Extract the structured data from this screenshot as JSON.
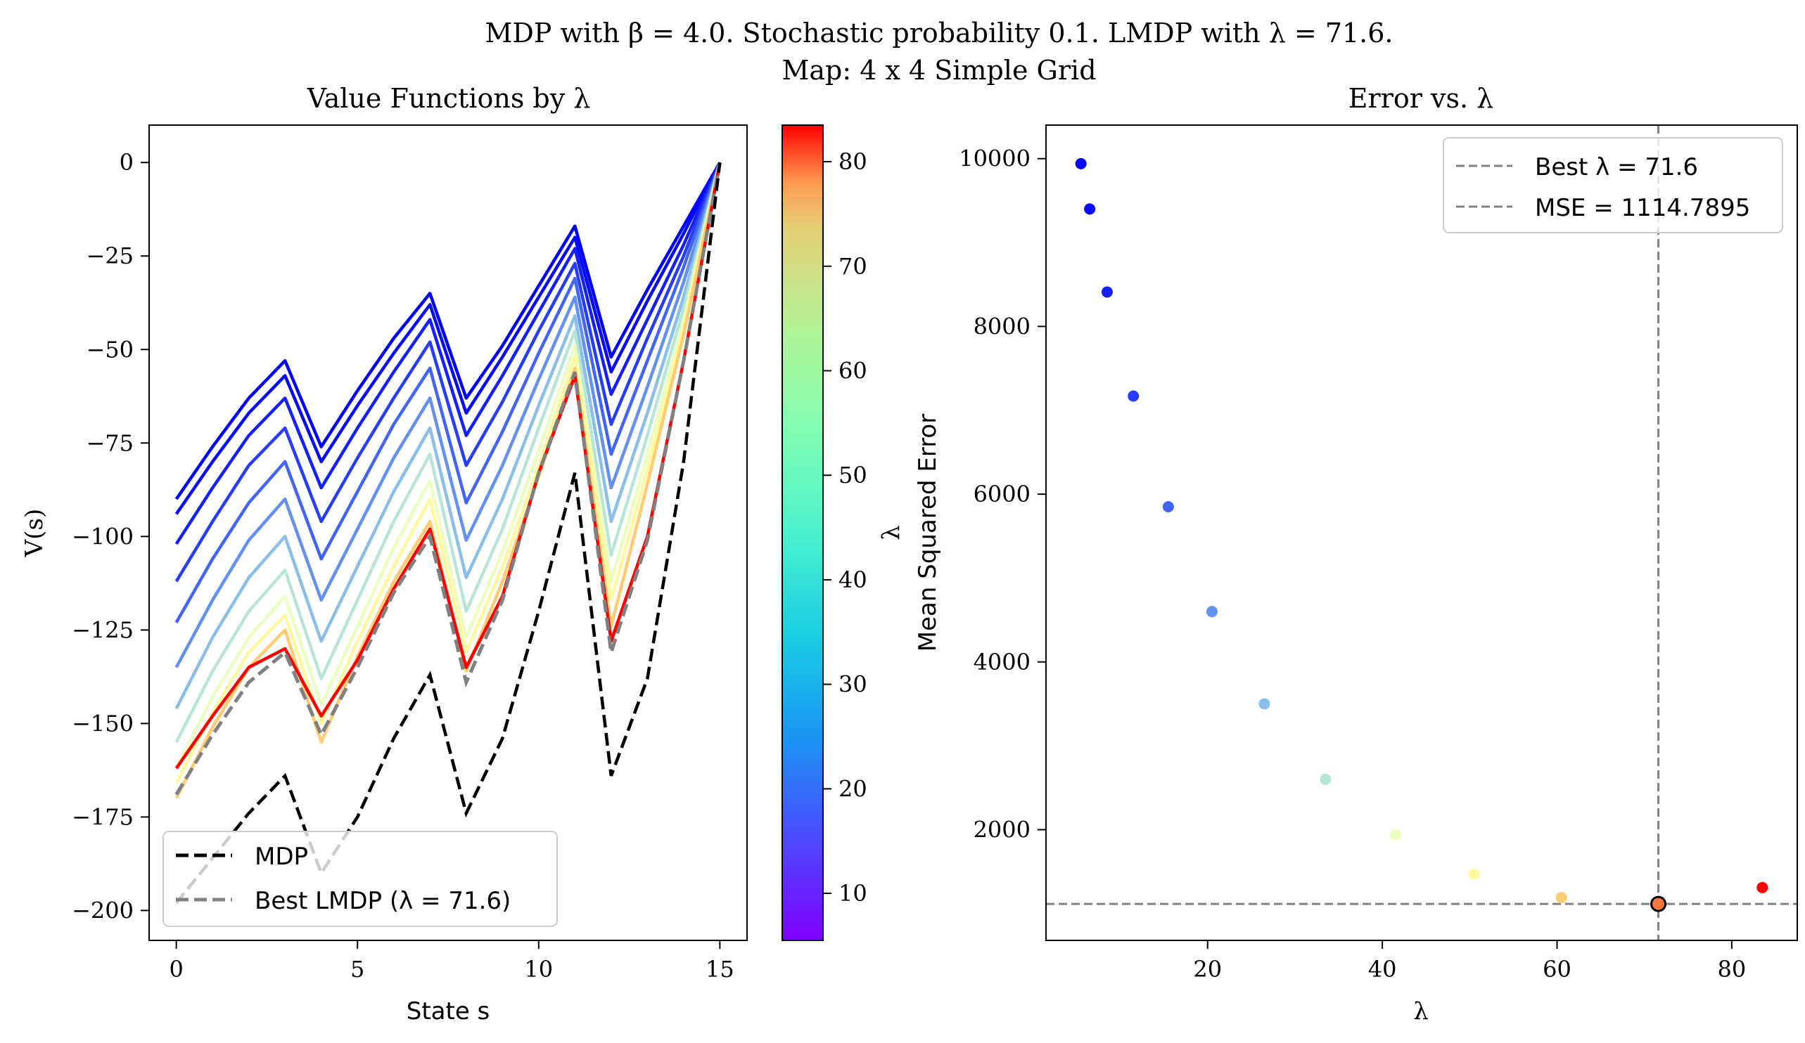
{
  "suptitle": {
    "line1": "MDP with β = 4.0. Stochastic probability 0.1. LMDP with λ = 71.6.",
    "line2": "Map: 4 x 4 Simple Grid"
  },
  "chart_data": [
    {
      "type": "line",
      "title": "Value Functions by λ",
      "xlabel": "State s",
      "ylabel": "V(s)",
      "xlim": [
        -0.75,
        15.75
      ],
      "ylim": [
        -208,
        10
      ],
      "xticks": [
        0,
        5,
        10,
        15
      ],
      "yticks": [
        0,
        -25,
        -50,
        -75,
        -100,
        -125,
        -150,
        -175,
        -200
      ],
      "x": [
        0,
        1,
        2,
        3,
        4,
        5,
        6,
        7,
        8,
        9,
        10,
        11,
        12,
        13,
        14,
        15
      ],
      "lambda_curves": [
        {
          "lambda": 5.5,
          "values": [
            -90,
            -76,
            -63,
            -53,
            -76,
            -61,
            -47,
            -35,
            -63,
            -49,
            -33,
            -17,
            -52,
            -34,
            -17,
            0
          ]
        },
        {
          "lambda": 6.5,
          "values": [
            -94,
            -80,
            -67,
            -57,
            -80,
            -65,
            -51,
            -38,
            -67,
            -52,
            -36,
            -20,
            -56,
            -37,
            -19,
            0
          ]
        },
        {
          "lambda": 8.5,
          "values": [
            -102,
            -87,
            -73,
            -63,
            -87,
            -71,
            -56,
            -42,
            -73,
            -57,
            -40,
            -23,
            -62,
            -42,
            -22,
            0
          ]
        },
        {
          "lambda": 11.5,
          "values": [
            -112,
            -96,
            -81,
            -71,
            -96,
            -79,
            -63,
            -48,
            -81,
            -64,
            -45,
            -27,
            -70,
            -47,
            -25,
            0
          ]
        },
        {
          "lambda": 15.5,
          "values": [
            -123,
            -106,
            -91,
            -80,
            -106,
            -88,
            -70,
            -55,
            -91,
            -72,
            -51,
            -31,
            -78,
            -53,
            -28,
            0
          ]
        },
        {
          "lambda": 20.5,
          "values": [
            -135,
            -117,
            -101,
            -90,
            -117,
            -98,
            -79,
            -63,
            -101,
            -81,
            -58,
            -36,
            -87,
            -60,
            -32,
            0
          ]
        },
        {
          "lambda": 26.5,
          "values": [
            -146,
            -127,
            -111,
            -100,
            -128,
            -108,
            -88,
            -71,
            -111,
            -90,
            -65,
            -41,
            -96,
            -67,
            -36,
            0
          ]
        },
        {
          "lambda": 33.5,
          "values": [
            -155,
            -136,
            -120,
            -109,
            -138,
            -117,
            -96,
            -78,
            -120,
            -98,
            -71,
            -45,
            -105,
            -73,
            -39,
            0
          ]
        },
        {
          "lambda": 41.5,
          "values": [
            -162,
            -143,
            -127,
            -116,
            -145,
            -124,
            -103,
            -85,
            -127,
            -104,
            -77,
            -49,
            -112,
            -78,
            -42,
            0
          ]
        },
        {
          "lambda": 50.5,
          "values": [
            -166,
            -147,
            -131,
            -121,
            -150,
            -128,
            -108,
            -90,
            -131,
            -108,
            -81,
            -52,
            -117,
            -82,
            -44,
            0
          ]
        },
        {
          "lambda": 60.5,
          "values": [
            -170,
            -151,
            -135,
            -125,
            -155,
            -132,
            -112,
            -96,
            -136,
            -112,
            -84,
            -55,
            -124,
            -86,
            -46,
            0
          ]
        },
        {
          "lambda": 83.5,
          "values": [
            -162,
            -148,
            -135,
            -130,
            -148,
            -133,
            -114,
            -98,
            -135,
            -116,
            -83,
            -57,
            -128,
            -100,
            -53,
            0
          ]
        }
      ],
      "series": [
        {
          "name": "MDP",
          "values": [
            -198,
            -186,
            -174,
            -164,
            -190,
            -175,
            -154,
            -137,
            -174,
            -154,
            -120,
            -83,
            -164,
            -138,
            -80,
            0
          ]
        },
        {
          "name": "Best LMDP (λ = 71.6)",
          "values": [
            -169,
            -153,
            -139,
            -131,
            -153,
            -135,
            -115,
            -100,
            -139,
            -117,
            -83,
            -56,
            -131,
            -101,
            -53,
            0
          ]
        }
      ],
      "legend_placement": "lower-left",
      "colorbar": {
        "label": "λ",
        "range": [
          5.5,
          83.5
        ],
        "ticks": [
          10,
          20,
          30,
          40,
          50,
          60,
          70,
          80
        ],
        "colormap": "rainbow"
      },
      "colors": {
        "mdp": "#000000",
        "best": "#808080"
      }
    },
    {
      "type": "scatter",
      "title": "Error vs. λ",
      "xlabel": "λ",
      "ylabel": "Mean Squared Error",
      "xlim": [
        1.5,
        87.5
      ],
      "ylim": [
        680,
        10400
      ],
      "xticks": [
        20,
        40,
        60,
        80
      ],
      "yticks": [
        2000,
        4000,
        6000,
        8000,
        10000
      ],
      "points": [
        {
          "x": 5.5,
          "y": 9940
        },
        {
          "x": 6.5,
          "y": 9400
        },
        {
          "x": 8.5,
          "y": 8410
        },
        {
          "x": 11.5,
          "y": 7170
        },
        {
          "x": 15.5,
          "y": 5850
        },
        {
          "x": 20.5,
          "y": 4600
        },
        {
          "x": 26.5,
          "y": 3500
        },
        {
          "x": 33.5,
          "y": 2600
        },
        {
          "x": 41.5,
          "y": 1940
        },
        {
          "x": 50.5,
          "y": 1470
        },
        {
          "x": 60.5,
          "y": 1190
        },
        {
          "x": 83.5,
          "y": 1310
        }
      ],
      "best": {
        "x": 71.6,
        "y": 1114.7895
      },
      "legend_placement": "top-right",
      "legend": [
        "Best λ = 71.6",
        "MSE = 1114.7895"
      ]
    }
  ]
}
